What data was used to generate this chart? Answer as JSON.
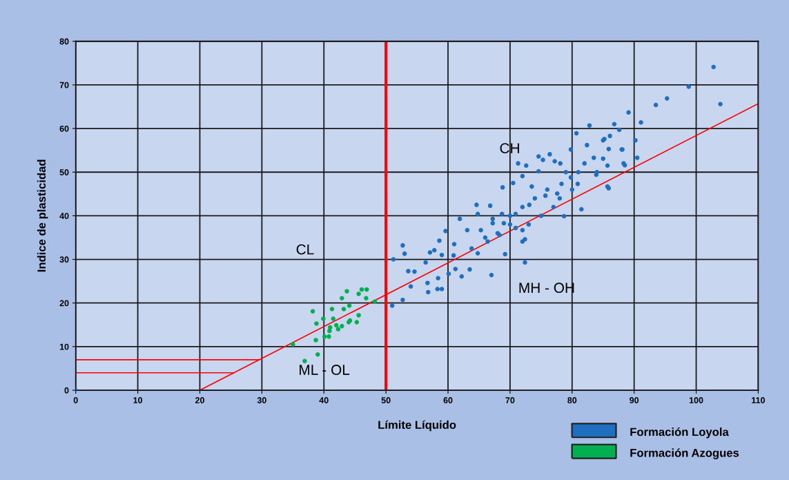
{
  "chart_data": {
    "type": "scatter",
    "xlabel": "Límite Líquido",
    "ylabel": "Indice de plasticidad",
    "xlim": [
      0,
      110
    ],
    "ylim": [
      0,
      80
    ],
    "xticks": [
      0,
      10,
      20,
      30,
      40,
      50,
      60,
      70,
      80,
      90,
      100,
      110
    ],
    "yticks": [
      0,
      10,
      20,
      30,
      40,
      50,
      60,
      70,
      80
    ],
    "grid": true,
    "legend": "bottom right",
    "series": [
      {
        "name": "Formación Loyola",
        "color": "#1f6fc0",
        "marker": "circle",
        "x": [
          0,
          51.0,
          52.7,
          51.2,
          52.7,
          53.0,
          53.6,
          54.6,
          54.0,
          56.8,
          56.7,
          58.3,
          59.0,
          58.4,
          56.4,
          57.1,
          57.8,
          58.6,
          59.0,
          59.6,
          60.1,
          61.0,
          60.9,
          61.2,
          62.2,
          61.9,
          63.1,
          63.5,
          63.8,
          64.8,
          64.8,
          65.3,
          67.0,
          66.4,
          67.2,
          68.3,
          69.2,
          68.7,
          70.9,
          72.4,
          72.0,
          64.6,
          66.8,
          68.8,
          71.3,
          72.6,
          70.5,
          72.0,
          73.5,
          74.6,
          74.6,
          75.3,
          76.4,
          73.1,
          75.7,
          77.2,
          78.1,
          78.3,
          77.6,
          78.7,
          79.8,
          79.8,
          80.9,
          81.5,
          80.7,
          82.4,
          82.8,
          83.5,
          83.9,
          85.0,
          85.7,
          85.7,
          85.0,
          86.1,
          88.0,
          88.3,
          86.8,
          90.2,
          72.0,
          72.4,
          69.0,
          67.2,
          70.9,
          102.8,
          98.8,
          95.3,
          93.5,
          103.9,
          89.1,
          91.1,
          87.6,
          85.9,
          88.1,
          90.5,
          88.5,
          85.9,
          85.2,
          70,
          72,
          74,
          76,
          78,
          80,
          75,
          77,
          70,
          68,
          66,
          73,
          79,
          81,
          82,
          84
        ],
        "values": [
          0,
          19.4,
          20.7,
          30.0,
          33.2,
          31.3,
          27.3,
          27.2,
          23.8,
          22.5,
          24.6,
          23.2,
          23.2,
          25.7,
          29.3,
          31.6,
          32.1,
          34.3,
          31.0,
          36.5,
          26.7,
          33.5,
          30.9,
          27.8,
          26.1,
          39.3,
          36.7,
          27.7,
          32.5,
          31.4,
          40.4,
          36.7,
          26.4,
          34.1,
          38.3,
          35.6,
          31.2,
          40.4,
          37.2,
          29.3,
          34.1,
          42.5,
          42.3,
          46.5,
          52.0,
          51.5,
          47.5,
          49.1,
          46.7,
          50.2,
          53.6,
          52.8,
          54.1,
          42.5,
          44.6,
          52.5,
          52.0,
          47.3,
          45.1,
          39.9,
          55.2,
          48.8,
          47.3,
          41.5,
          58.9,
          56.2,
          60.7,
          53.3,
          49.4,
          53.1,
          51.5,
          46.7,
          57.3,
          58.3,
          55.2,
          52.0,
          61.0,
          57.3,
          36.7,
          34.6,
          38.3,
          39.3,
          40.4,
          74.1,
          69.6,
          66.9,
          65.4,
          65.6,
          63.7,
          61.4,
          59.7,
          55.3,
          55.2,
          53.3,
          51.6,
          46.3,
          57.6,
          40,
          42,
          44,
          46,
          44,
          46,
          40,
          42,
          38,
          36,
          35,
          38,
          50,
          50,
          52,
          50
        ]
      },
      {
        "name": "Formación Azogues",
        "color": "#00b050",
        "marker": "circle",
        "x": [
          36.9,
          39.0,
          35.0,
          38.7,
          40.1,
          40.8,
          40.9,
          41.0,
          38.8,
          39.9,
          41.5,
          38.2,
          41.3,
          42.0,
          42.3,
          42.9,
          43.2,
          44.1,
          42.9,
          43.7,
          44.0,
          44.2,
          45.3,
          45.6,
          45.6,
          46.1,
          46.9,
          46.8,
          48.2
        ],
        "values": [
          6.7,
          8.2,
          10.5,
          11.5,
          12.3,
          12.3,
          13.6,
          14.4,
          15.3,
          16.4,
          16.4,
          18.1,
          18.6,
          14.9,
          14.0,
          14.7,
          18.6,
          19.4,
          21.1,
          22.7,
          15.6,
          16.0,
          15.6,
          17.2,
          22.1,
          23.1,
          23.1,
          21.1,
          20.3
        ]
      },
      {
        "type": "line",
        "color": "#ff0000",
        "x": [
          20,
          110
        ],
        "values": [
          0,
          65.7
        ]
      },
      {
        "type": "line",
        "color": "#ff0000",
        "x": [
          0,
          29.6
        ],
        "values": [
          7,
          7
        ]
      },
      {
        "type": "line",
        "color": "#ff0000",
        "x": [
          0,
          25.5
        ],
        "values": [
          4,
          4
        ]
      }
    ],
    "ref_lines": [
      {
        "axis": "x",
        "value": 50,
        "color": "#ff0000"
      }
    ],
    "annotations": [
      "CH",
      "CL",
      "MH - OH",
      "ML - OL"
    ]
  }
}
